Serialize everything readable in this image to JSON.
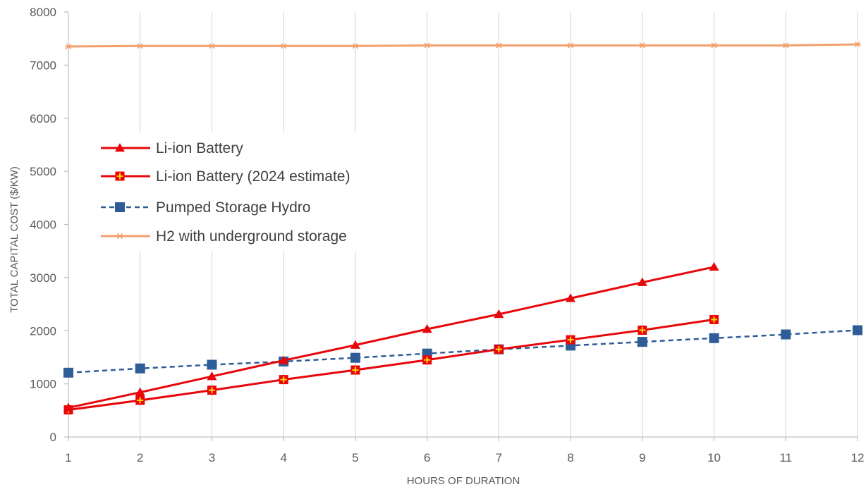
{
  "chart_data": {
    "type": "line",
    "title": "",
    "xlabel": "HOURS OF DURATION",
    "ylabel": "TOTAL CAPITAL COST ($/KW)",
    "x": [
      1,
      2,
      3,
      4,
      5,
      6,
      7,
      8,
      9,
      10,
      11,
      12
    ],
    "xlim": [
      1,
      12
    ],
    "ylim": [
      0,
      8000
    ],
    "yticks": [
      0,
      1000,
      2000,
      3000,
      4000,
      5000,
      6000,
      7000,
      8000
    ],
    "grid": "vertical",
    "legend_position": "upper-left",
    "series": [
      {
        "name": "Li-ion Battery",
        "color": "#e8060b",
        "marker": "triangle",
        "dash": "solid",
        "x": [
          1,
          2,
          3,
          4,
          5,
          6,
          7,
          8,
          9,
          10
        ],
        "values": [
          550,
          840,
          1140,
          1440,
          1730,
          2030,
          2310,
          2610,
          2910,
          3200
        ]
      },
      {
        "name": "Li-ion Battery (2024 estimate)",
        "color": "#e8060b",
        "marker": "square-plus",
        "dash": "solid",
        "x": [
          1,
          2,
          3,
          4,
          5,
          6,
          7,
          8,
          9,
          10
        ],
        "values": [
          510,
          690,
          880,
          1080,
          1260,
          1450,
          1650,
          1830,
          2010,
          2210
        ]
      },
      {
        "name": "Pumped Storage Hydro",
        "color": "#2e5c97",
        "marker": "square",
        "dash": "dashed",
        "x": [
          1,
          2,
          3,
          4,
          5,
          6,
          7,
          8,
          9,
          10,
          11,
          12
        ],
        "values": [
          1210,
          1290,
          1360,
          1420,
          1490,
          1570,
          1650,
          1720,
          1790,
          1860,
          1930,
          2010
        ]
      },
      {
        "name": "H2 with underground storage",
        "color": "#f2a06c",
        "marker": "asterisk",
        "dash": "solid",
        "x": [
          1,
          2,
          3,
          4,
          5,
          6,
          7,
          8,
          9,
          10,
          11,
          12
        ],
        "values": [
          7350,
          7360,
          7360,
          7360,
          7360,
          7370,
          7370,
          7370,
          7370,
          7370,
          7370,
          7390
        ]
      }
    ]
  }
}
